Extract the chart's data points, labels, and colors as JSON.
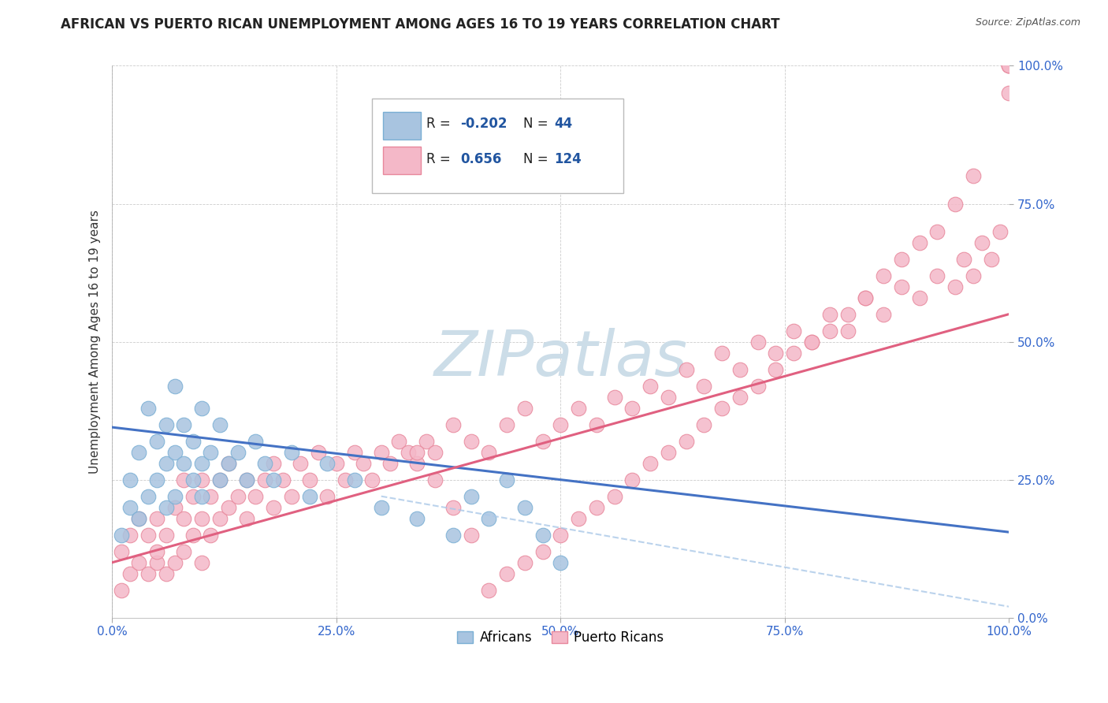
{
  "title": "AFRICAN VS PUERTO RICAN UNEMPLOYMENT AMONG AGES 16 TO 19 YEARS CORRELATION CHART",
  "source": "Source: ZipAtlas.com",
  "ylabel": "Unemployment Among Ages 16 to 19 years",
  "xlim": [
    0.0,
    1.0
  ],
  "ylim": [
    0.0,
    1.0
  ],
  "xticks": [
    0.0,
    0.25,
    0.5,
    0.75,
    1.0
  ],
  "yticks": [
    0.0,
    0.25,
    0.5,
    0.75,
    1.0
  ],
  "xticklabels": [
    "0.0%",
    "25.0%",
    "50.0%",
    "75.0%",
    "100.0%"
  ],
  "yticklabels": [
    "0.0%",
    "25.0%",
    "50.0%",
    "75.0%",
    "100.0%"
  ],
  "african_color": "#a8c4e0",
  "puerto_rican_color": "#f4b8c8",
  "african_edge_color": "#7aafd4",
  "puerto_rican_edge_color": "#e8889c",
  "blue_line_color": "#4472c4",
  "pink_line_color": "#e06080",
  "dashed_line_color": "#aac8e8",
  "watermark_color": "#ccdde8",
  "legend_color": "#2155a0",
  "R_african": -0.202,
  "N_african": 44,
  "R_puerto_rican": 0.656,
  "N_puerto_rican": 124,
  "african_x": [
    0.01,
    0.02,
    0.02,
    0.03,
    0.03,
    0.04,
    0.04,
    0.05,
    0.05,
    0.06,
    0.06,
    0.06,
    0.07,
    0.07,
    0.07,
    0.08,
    0.08,
    0.09,
    0.09,
    0.1,
    0.1,
    0.1,
    0.11,
    0.12,
    0.12,
    0.13,
    0.14,
    0.15,
    0.16,
    0.17,
    0.18,
    0.2,
    0.22,
    0.24,
    0.27,
    0.3,
    0.34,
    0.38,
    0.4,
    0.42,
    0.44,
    0.46,
    0.48,
    0.5
  ],
  "african_y": [
    0.15,
    0.2,
    0.25,
    0.18,
    0.3,
    0.22,
    0.38,
    0.25,
    0.32,
    0.2,
    0.28,
    0.35,
    0.22,
    0.3,
    0.42,
    0.28,
    0.35,
    0.25,
    0.32,
    0.22,
    0.28,
    0.38,
    0.3,
    0.25,
    0.35,
    0.28,
    0.3,
    0.25,
    0.32,
    0.28,
    0.25,
    0.3,
    0.22,
    0.28,
    0.25,
    0.2,
    0.18,
    0.15,
    0.22,
    0.18,
    0.25,
    0.2,
    0.15,
    0.1
  ],
  "puerto_rican_x": [
    0.01,
    0.01,
    0.02,
    0.02,
    0.03,
    0.03,
    0.04,
    0.04,
    0.05,
    0.05,
    0.05,
    0.06,
    0.06,
    0.07,
    0.07,
    0.08,
    0.08,
    0.08,
    0.09,
    0.09,
    0.1,
    0.1,
    0.1,
    0.11,
    0.11,
    0.12,
    0.12,
    0.13,
    0.13,
    0.14,
    0.15,
    0.15,
    0.16,
    0.17,
    0.18,
    0.18,
    0.19,
    0.2,
    0.21,
    0.22,
    0.23,
    0.24,
    0.25,
    0.26,
    0.27,
    0.28,
    0.29,
    0.3,
    0.31,
    0.32,
    0.33,
    0.34,
    0.35,
    0.36,
    0.38,
    0.4,
    0.42,
    0.44,
    0.46,
    0.48,
    0.5,
    0.52,
    0.54,
    0.56,
    0.58,
    0.6,
    0.62,
    0.64,
    0.66,
    0.68,
    0.7,
    0.72,
    0.74,
    0.76,
    0.78,
    0.8,
    0.82,
    0.84,
    0.86,
    0.88,
    0.9,
    0.92,
    0.94,
    0.95,
    0.96,
    0.97,
    0.98,
    0.99,
    1.0,
    1.0,
    1.0,
    1.0,
    0.96,
    0.94,
    0.92,
    0.9,
    0.88,
    0.86,
    0.84,
    0.82,
    0.8,
    0.78,
    0.76,
    0.74,
    0.72,
    0.7,
    0.68,
    0.66,
    0.64,
    0.62,
    0.6,
    0.58,
    0.56,
    0.54,
    0.52,
    0.5,
    0.48,
    0.46,
    0.44,
    0.42,
    0.4,
    0.38,
    0.36,
    0.34
  ],
  "puerto_rican_y": [
    0.05,
    0.12,
    0.08,
    0.15,
    0.1,
    0.18,
    0.08,
    0.15,
    0.1,
    0.18,
    0.12,
    0.08,
    0.15,
    0.1,
    0.2,
    0.12,
    0.18,
    0.25,
    0.15,
    0.22,
    0.1,
    0.18,
    0.25,
    0.15,
    0.22,
    0.18,
    0.25,
    0.2,
    0.28,
    0.22,
    0.18,
    0.25,
    0.22,
    0.25,
    0.2,
    0.28,
    0.25,
    0.22,
    0.28,
    0.25,
    0.3,
    0.22,
    0.28,
    0.25,
    0.3,
    0.28,
    0.25,
    0.3,
    0.28,
    0.32,
    0.3,
    0.28,
    0.32,
    0.3,
    0.35,
    0.32,
    0.3,
    0.35,
    0.38,
    0.32,
    0.35,
    0.38,
    0.35,
    0.4,
    0.38,
    0.42,
    0.4,
    0.45,
    0.42,
    0.48,
    0.45,
    0.5,
    0.48,
    0.52,
    0.5,
    0.55,
    0.52,
    0.58,
    0.55,
    0.6,
    0.58,
    0.62,
    0.6,
    0.65,
    0.62,
    0.68,
    0.65,
    0.7,
    1.0,
    1.0,
    1.0,
    0.95,
    0.8,
    0.75,
    0.7,
    0.68,
    0.65,
    0.62,
    0.58,
    0.55,
    0.52,
    0.5,
    0.48,
    0.45,
    0.42,
    0.4,
    0.38,
    0.35,
    0.32,
    0.3,
    0.28,
    0.25,
    0.22,
    0.2,
    0.18,
    0.15,
    0.12,
    0.1,
    0.08,
    0.05,
    0.15,
    0.2,
    0.25,
    0.3
  ],
  "blue_line_x": [
    0.0,
    1.0
  ],
  "blue_line_y": [
    0.345,
    0.155
  ],
  "pink_line_x": [
    0.0,
    1.0
  ],
  "pink_line_y": [
    0.1,
    0.55
  ],
  "dashed_line_x": [
    0.3,
    1.0
  ],
  "dashed_line_y": [
    0.22,
    0.02
  ]
}
